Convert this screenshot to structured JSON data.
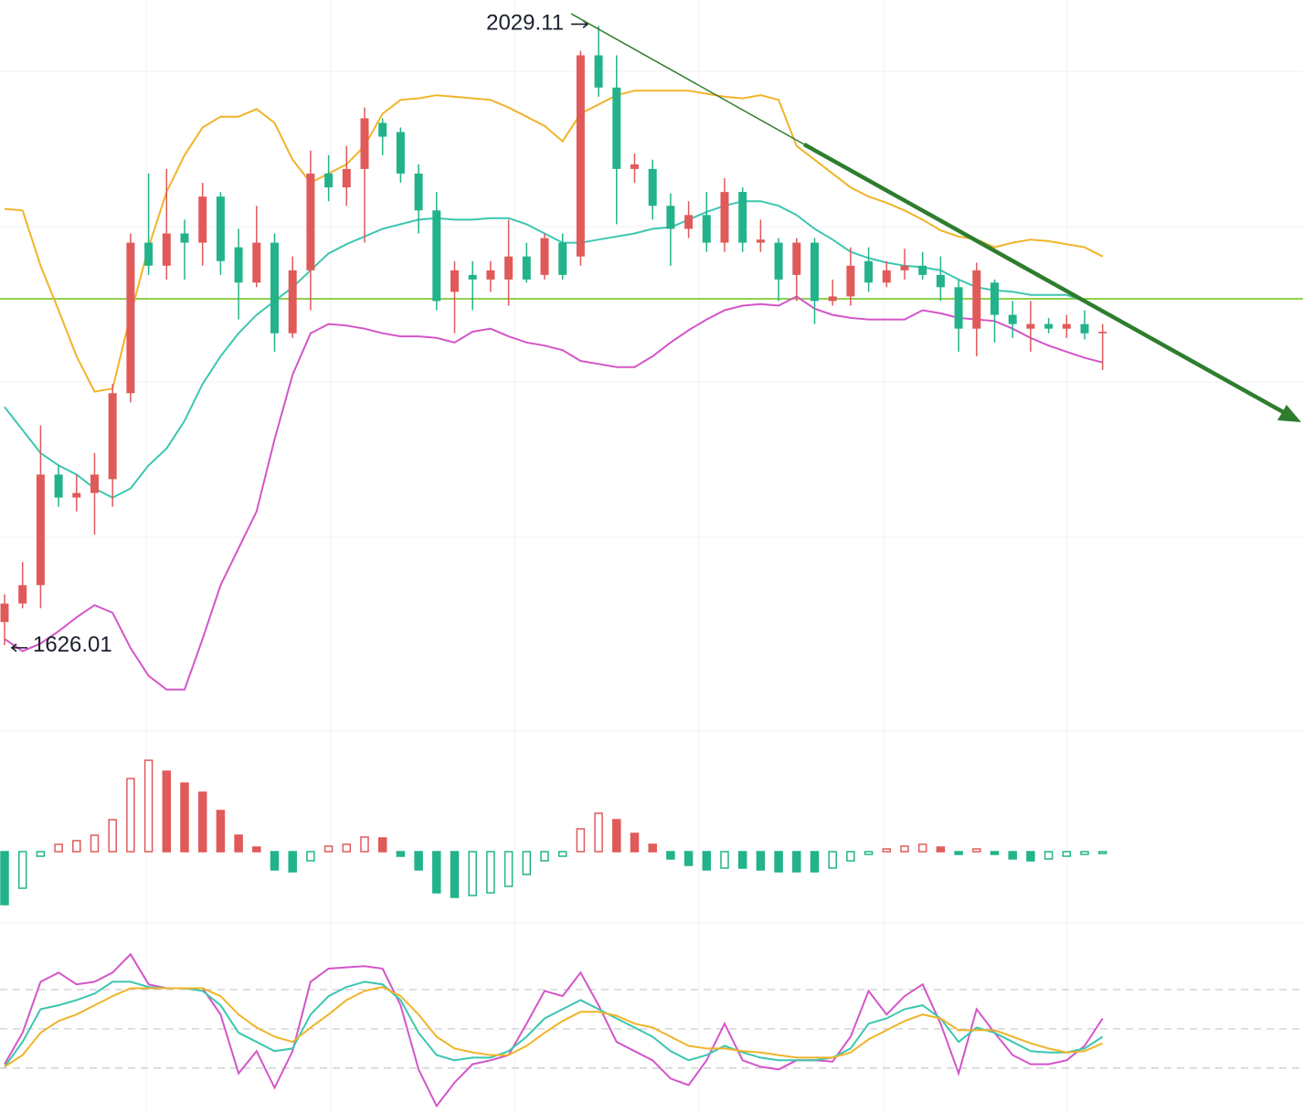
{
  "chart_data": [
    {
      "type": "candlestick",
      "up_color": "#e05a5a",
      "down_color": "#22b38a",
      "ylim": [
        1590,
        2040
      ],
      "open": [
        1641,
        1653,
        1665,
        1737,
        1722,
        1725,
        1734,
        1790,
        1888,
        1873,
        1894,
        1888,
        1918,
        1885,
        1862,
        1888,
        1829,
        1870,
        1933,
        1924,
        1936,
        1966,
        1960,
        1933,
        1909,
        1856,
        1867,
        1864,
        1864,
        1879,
        1867,
        1888,
        1879,
        2010,
        1989,
        1936,
        1936,
        1912,
        1897,
        1906,
        1888,
        1921,
        1888,
        1888,
        1867,
        1888,
        1850,
        1853,
        1876,
        1862,
        1870,
        1873,
        1867,
        1859,
        1832,
        1862,
        1841,
        1832,
        1835,
        1832,
        1835,
        1829
      ],
      "close": [
        1653,
        1665,
        1737,
        1722,
        1725,
        1737,
        1790,
        1888,
        1873,
        1894,
        1888,
        1918,
        1876,
        1862,
        1888,
        1829,
        1870,
        1933,
        1924,
        1936,
        1969,
        1957,
        1933,
        1909,
        1850,
        1870,
        1864,
        1870,
        1879,
        1864,
        1891,
        1867,
        2010,
        1989,
        1936,
        1939,
        1912,
        1897,
        1906,
        1888,
        1921,
        1888,
        1890,
        1864,
        1888,
        1850,
        1853,
        1873,
        1862,
        1870,
        1873,
        1867,
        1859,
        1832,
        1870,
        1841,
        1835,
        1835,
        1832,
        1835,
        1829,
        1830
      ],
      "high": [
        1659,
        1680,
        1769,
        1743,
        1737,
        1751,
        1796,
        1894,
        1933,
        1936,
        1903,
        1927,
        1921,
        1897,
        1912,
        1894,
        1879,
        1948,
        1945,
        1951,
        1976,
        1969,
        1963,
        1939,
        1921,
        1876,
        1876,
        1876,
        1903,
        1888,
        1894,
        1894,
        2013,
        2029.11,
        2010,
        1946,
        1942,
        1920,
        1915,
        1921,
        1930,
        1924,
        1903,
        1891,
        1891,
        1891,
        1864,
        1885,
        1885,
        1876,
        1884,
        1882,
        1879,
        1864,
        1875,
        1864,
        1850,
        1850,
        1839,
        1841,
        1844,
        1835
      ],
      "low": [
        1626.01,
        1650,
        1650,
        1716,
        1713,
        1698,
        1716,
        1784,
        1867,
        1864,
        1864,
        1873,
        1867,
        1838,
        1859,
        1817,
        1826,
        1844,
        1915,
        1912,
        1888,
        1945,
        1927,
        1894,
        1844,
        1829,
        1844,
        1856,
        1847,
        1862,
        1864,
        1864,
        1873,
        1983,
        1900,
        1927,
        1903,
        1873,
        1891,
        1882,
        1882,
        1882,
        1882,
        1850,
        1850,
        1835,
        1847,
        1847,
        1856,
        1859,
        1864,
        1864,
        1850,
        1817,
        1814,
        1823,
        1826,
        1817,
        1829,
        1826,
        1825,
        1805
      ],
      "bands": [
        {
          "color": "#f0b429",
          "values": [
            1910,
            1909,
            1873,
            1844,
            1814,
            1791,
            1793,
            1841,
            1885,
            1921,
            1945,
            1963,
            1970,
            1970,
            1975,
            1966,
            1942,
            1927,
            1933,
            1939,
            1951,
            1972,
            1981,
            1982,
            1984,
            1983,
            1982,
            1981,
            1976,
            1970,
            1964,
            1954,
            1972,
            1978,
            1984,
            1987,
            1987,
            1987,
            1987,
            1985,
            1983,
            1982,
            1984,
            1981,
            1951,
            1942,
            1933,
            1924,
            1918,
            1914,
            1909,
            1903,
            1896,
            1892,
            1890,
            1885,
            1888,
            1890,
            1889,
            1887,
            1885,
            1879
          ]
        },
        {
          "color": "#3cc6b0",
          "values": [
            1781,
            1766,
            1751,
            1743,
            1737,
            1728,
            1722,
            1728,
            1743,
            1754,
            1772,
            1796,
            1814,
            1829,
            1841,
            1850,
            1859,
            1870,
            1881,
            1887,
            1892,
            1897,
            1900,
            1903,
            1904,
            1903,
            1903,
            1904,
            1904,
            1900,
            1894,
            1888,
            1888,
            1890,
            1892,
            1894,
            1897,
            1898,
            1903,
            1908,
            1912,
            1915,
            1915,
            1912,
            1906,
            1897,
            1890,
            1882,
            1878,
            1875,
            1873,
            1872,
            1870,
            1864,
            1859,
            1857,
            1856,
            1854,
            1854,
            1854,
            1850,
            1844
          ]
        },
        {
          "color": "#d455c9",
          "values": [
            1630,
            1622,
            1627,
            1635,
            1644,
            1652,
            1647,
            1624,
            1606,
            1597,
            1597,
            1630,
            1665,
            1689,
            1713,
            1760,
            1802,
            1829,
            1835,
            1834,
            1832,
            1829,
            1827,
            1827,
            1826,
            1823,
            1830,
            1832,
            1827,
            1823,
            1821,
            1818,
            1811,
            1809,
            1807,
            1807,
            1814,
            1823,
            1831,
            1838,
            1844,
            1847,
            1848,
            1847,
            1853,
            1845,
            1841,
            1839,
            1838,
            1838,
            1838,
            1844,
            1842,
            1839,
            1838,
            1837,
            1832,
            1826,
            1821,
            1817,
            1813,
            1810
          ]
        }
      ]
    },
    {
      "type": "bar",
      "up_color": "#e05a5a",
      "down_color": "#22b38a",
      "ylim": [
        -70,
        110
      ],
      "values": [
        -58,
        -40,
        -5,
        8,
        12,
        18,
        35,
        80,
        100,
        88,
        75,
        65,
        45,
        18,
        5,
        -20,
        -22,
        -10,
        6,
        8,
        16,
        15,
        -5,
        -20,
        -45,
        -50,
        -48,
        -45,
        -38,
        -25,
        -10,
        -5,
        25,
        42,
        35,
        20,
        8,
        -8,
        -15,
        -20,
        -18,
        -18,
        -20,
        -22,
        -22,
        -22,
        -18,
        -10,
        -3,
        3,
        6,
        8,
        5,
        -3,
        3,
        -3,
        -8,
        -10,
        -8,
        -5,
        -3,
        -2
      ]
    },
    {
      "type": "line",
      "ylim": [
        -15,
        110
      ],
      "levels": [
        20,
        50,
        80
      ],
      "series": [
        {
          "color": "#d455c9",
          "values": [
            23,
            47,
            86,
            93,
            84,
            86,
            93,
            107,
            84,
            81,
            81,
            81,
            61,
            16,
            33,
            5,
            33,
            86,
            96,
            97,
            98,
            96,
            68,
            19,
            -9,
            9,
            23,
            26,
            30,
            54,
            79,
            75,
            93,
            68,
            40,
            33,
            26,
            12,
            7,
            26,
            54,
            26,
            21,
            19,
            26,
            26,
            25,
            44,
            79,
            61,
            75,
            84,
            54,
            16,
            65,
            47,
            30,
            23,
            23,
            26,
            37,
            58
          ]
        },
        {
          "color": "#3cc6b0",
          "values": [
            21,
            40,
            65,
            68,
            72,
            77,
            86,
            86,
            82,
            81,
            81,
            79,
            68,
            47,
            40,
            33,
            35,
            61,
            75,
            82,
            86,
            84,
            72,
            47,
            30,
            26,
            28,
            28,
            33,
            44,
            58,
            65,
            72,
            65,
            58,
            51,
            44,
            33,
            26,
            30,
            37,
            32,
            28,
            26,
            26,
            26,
            28,
            35,
            54,
            58,
            65,
            68,
            58,
            40,
            51,
            47,
            40,
            33,
            32,
            32,
            35,
            44
          ]
        },
        {
          "color": "#f0b429",
          "values": [
            21,
            30,
            47,
            56,
            61,
            68,
            75,
            81,
            81,
            81,
            81,
            81,
            75,
            61,
            51,
            44,
            40,
            51,
            61,
            72,
            79,
            82,
            75,
            61,
            44,
            35,
            32,
            30,
            30,
            37,
            47,
            56,
            63,
            63,
            60,
            54,
            51,
            44,
            37,
            35,
            35,
            33,
            32,
            30,
            28,
            28,
            28,
            32,
            42,
            49,
            56,
            61,
            58,
            49,
            49,
            49,
            44,
            39,
            35,
            32,
            33,
            39
          ]
        }
      ]
    }
  ]
}
